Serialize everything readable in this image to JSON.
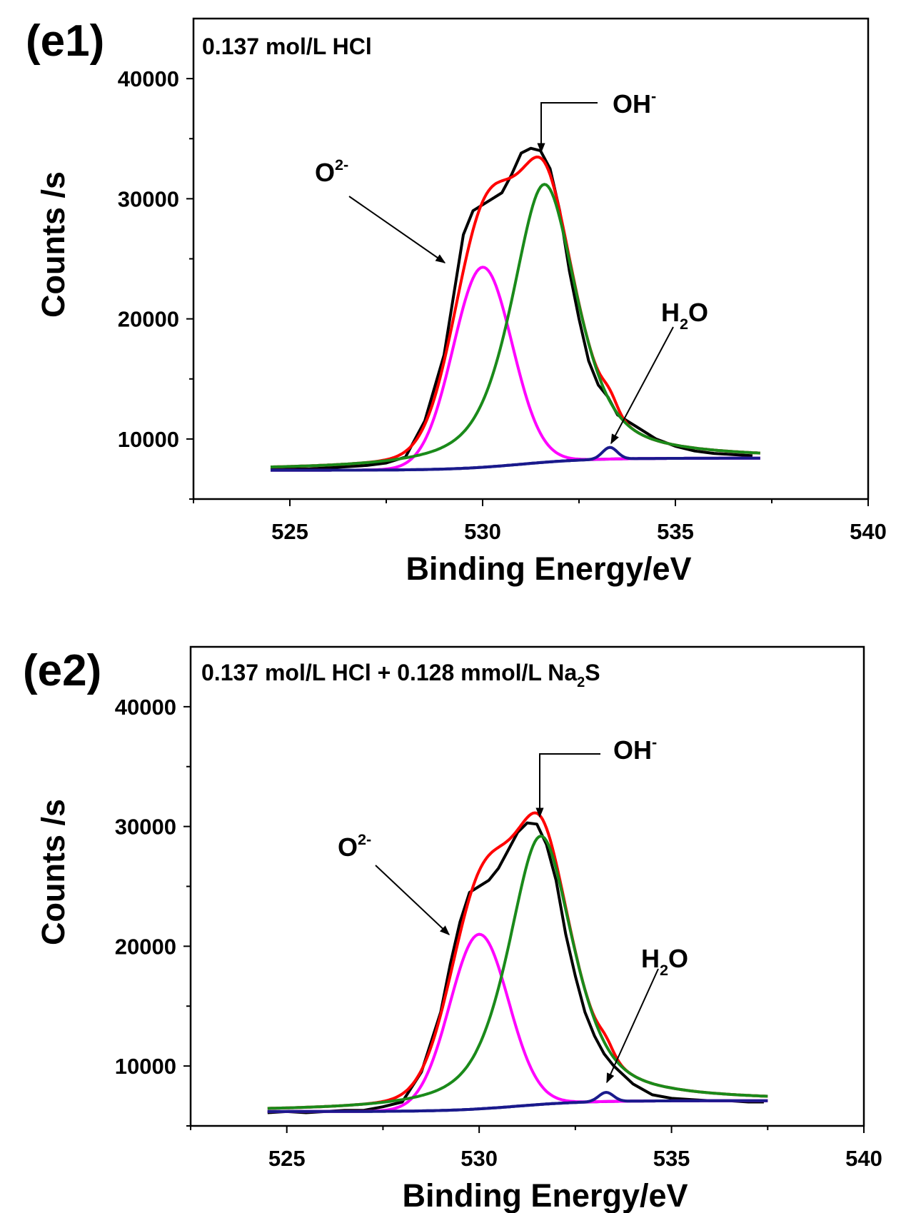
{
  "chart_data": [
    {
      "type": "line",
      "panel_label": "(e1)",
      "sample_label": {
        "text": "0.137 mol/L HCl",
        "sub": "",
        "tail": ""
      },
      "xlabel": "Binding Energy/eV",
      "ylabel": "Counts /s",
      "xlim": [
        522.5,
        540
      ],
      "ylim": [
        5000,
        45000
      ],
      "xticks": [
        525,
        530,
        535,
        540
      ],
      "yticks": [
        10000,
        20000,
        30000,
        40000
      ],
      "grid": false,
      "x_range": [
        524.5,
        537.2
      ],
      "baseline": {
        "start_counts": 7400,
        "end_counts": 8400,
        "color": "#1a1a8c"
      },
      "components": [
        {
          "label_base": "O",
          "label_sup": "2-",
          "label_sub": "",
          "label_tail": "",
          "center_eV": 530.0,
          "peak_counts": 24300,
          "fwhm_eV": 1.8,
          "lorentz_fraction": 0.0,
          "color": "#ff00ff"
        },
        {
          "label_base": "OH",
          "label_sup": "-",
          "label_sub": "",
          "label_tail": "",
          "center_eV": 531.6,
          "peak_counts": 31200,
          "fwhm_eV": 2.0,
          "lorentz_fraction": 0.6,
          "color": "#1a8a1a"
        },
        {
          "label_base": "H",
          "label_sup": "",
          "label_sub": "2",
          "label_tail": "O",
          "center_eV": 533.3,
          "peak_counts": 9300,
          "fwhm_eV": 0.45,
          "lorentz_fraction": 0.0,
          "color": "#1a1a8c"
        }
      ],
      "envelope_color": "#ff0000",
      "measured": {
        "color": "#000000",
        "x": [
          524.5,
          525,
          525.5,
          526,
          526.5,
          527,
          527.5,
          528,
          528.5,
          529,
          529.25,
          529.5,
          529.75,
          530,
          530.25,
          530.5,
          530.75,
          531,
          531.25,
          531.5,
          531.75,
          532,
          532.25,
          532.5,
          532.75,
          533,
          533.25,
          533.5,
          534,
          534.5,
          535,
          535.5,
          536,
          536.5,
          537
        ],
        "y": [
          7600,
          7500,
          7500,
          7600,
          7700,
          7800,
          8000,
          8500,
          11500,
          17000,
          22000,
          27000,
          29000,
          29500,
          30000,
          30500,
          32000,
          33800,
          34200,
          34000,
          32500,
          29000,
          24000,
          20000,
          16500,
          14500,
          13500,
          12000,
          11000,
          10000,
          9400,
          9000,
          8800,
          8700,
          8600
        ]
      }
    },
    {
      "type": "line",
      "panel_label": "(e2)",
      "sample_label": {
        "text": "0.137 mol/L HCl + 0.128 mmol/L Na",
        "sub": "2",
        "tail": "S"
      },
      "xlabel": "Binding Energy/eV",
      "ylabel": "Counts /s",
      "xlim": [
        522.5,
        540
      ],
      "ylim": [
        5000,
        45000
      ],
      "xticks": [
        525,
        530,
        535,
        540
      ],
      "yticks": [
        10000,
        20000,
        30000,
        40000
      ],
      "grid": false,
      "x_range": [
        524.5,
        537.5
      ],
      "baseline": {
        "start_counts": 6200,
        "end_counts": 7100,
        "color": "#1a1a8c"
      },
      "components": [
        {
          "label_base": "O",
          "label_sup": "2-",
          "label_sub": "",
          "label_tail": "",
          "center_eV": 530.0,
          "peak_counts": 21000,
          "fwhm_eV": 1.8,
          "lorentz_fraction": 0.0,
          "color": "#ff00ff"
        },
        {
          "label_base": "OH",
          "label_sup": "-",
          "label_sub": "",
          "label_tail": "",
          "center_eV": 531.6,
          "peak_counts": 29200,
          "fwhm_eV": 2.0,
          "lorentz_fraction": 0.6,
          "color": "#1a8a1a"
        },
        {
          "label_base": "H",
          "label_sup": "",
          "label_sub": "2",
          "label_tail": "O",
          "center_eV": 533.3,
          "peak_counts": 7800,
          "fwhm_eV": 0.45,
          "lorentz_fraction": 0.0,
          "color": "#1a1a8c"
        }
      ],
      "envelope_color": "#ff0000",
      "measured": {
        "color": "#000000",
        "x": [
          524.5,
          525,
          525.5,
          526,
          526.5,
          527,
          527.5,
          528,
          528.5,
          529,
          529.25,
          529.5,
          529.75,
          530,
          530.25,
          530.5,
          530.75,
          531,
          531.25,
          531.5,
          531.75,
          532,
          532.25,
          532.5,
          532.75,
          533,
          533.25,
          533.5,
          534,
          534.5,
          535,
          535.5,
          536,
          536.5,
          537,
          537.4
        ],
        "y": [
          6100,
          6200,
          6100,
          6200,
          6300,
          6300,
          6600,
          7000,
          9500,
          14500,
          18500,
          22000,
          24500,
          25000,
          25500,
          26500,
          28000,
          29500,
          30300,
          30200,
          28500,
          25500,
          21000,
          17500,
          14500,
          12500,
          11000,
          10000,
          8500,
          7600,
          7300,
          7200,
          7100,
          7100,
          7000,
          7000
        ]
      }
    }
  ]
}
